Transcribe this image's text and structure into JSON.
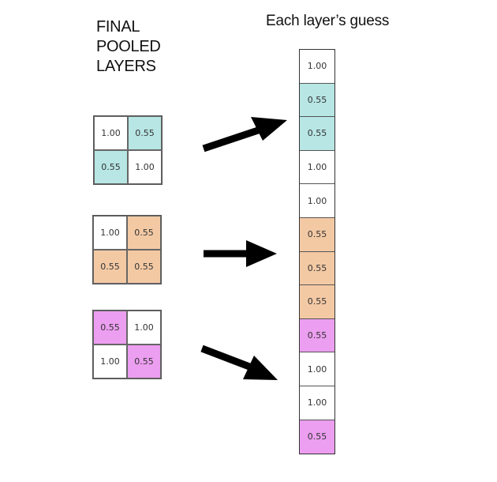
{
  "left_title": [
    "FINAL",
    "POOLED",
    "LAYERS"
  ],
  "right_title": "Each layer’s guess",
  "colors": {
    "cyan": "#b7e6e4",
    "orange": "#f3c9a4",
    "pink": "#ec9ef0",
    "white": "#ffffff"
  },
  "grids": [
    {
      "cells": [
        {
          "value": "1.00",
          "color": "white"
        },
        {
          "value": "0.55",
          "color": "cyan"
        },
        {
          "value": "0.55",
          "color": "cyan"
        },
        {
          "value": "1.00",
          "color": "white"
        }
      ]
    },
    {
      "cells": [
        {
          "value": "1.00",
          "color": "white"
        },
        {
          "value": "0.55",
          "color": "orange"
        },
        {
          "value": "0.55",
          "color": "orange"
        },
        {
          "value": "0.55",
          "color": "orange"
        }
      ]
    },
    {
      "cells": [
        {
          "value": "0.55",
          "color": "pink"
        },
        {
          "value": "1.00",
          "color": "white"
        },
        {
          "value": "1.00",
          "color": "white"
        },
        {
          "value": "0.55",
          "color": "pink"
        }
      ]
    }
  ],
  "vector": [
    {
      "value": "1.00",
      "color": "white"
    },
    {
      "value": "0.55",
      "color": "cyan"
    },
    {
      "value": "0.55",
      "color": "cyan"
    },
    {
      "value": "1.00",
      "color": "white"
    },
    {
      "value": "1.00",
      "color": "white"
    },
    {
      "value": "0.55",
      "color": "orange"
    },
    {
      "value": "0.55",
      "color": "orange"
    },
    {
      "value": "0.55",
      "color": "orange"
    },
    {
      "value": "0.55",
      "color": "pink"
    },
    {
      "value": "1.00",
      "color": "white"
    },
    {
      "value": "1.00",
      "color": "white"
    },
    {
      "value": "0.55",
      "color": "pink"
    }
  ]
}
